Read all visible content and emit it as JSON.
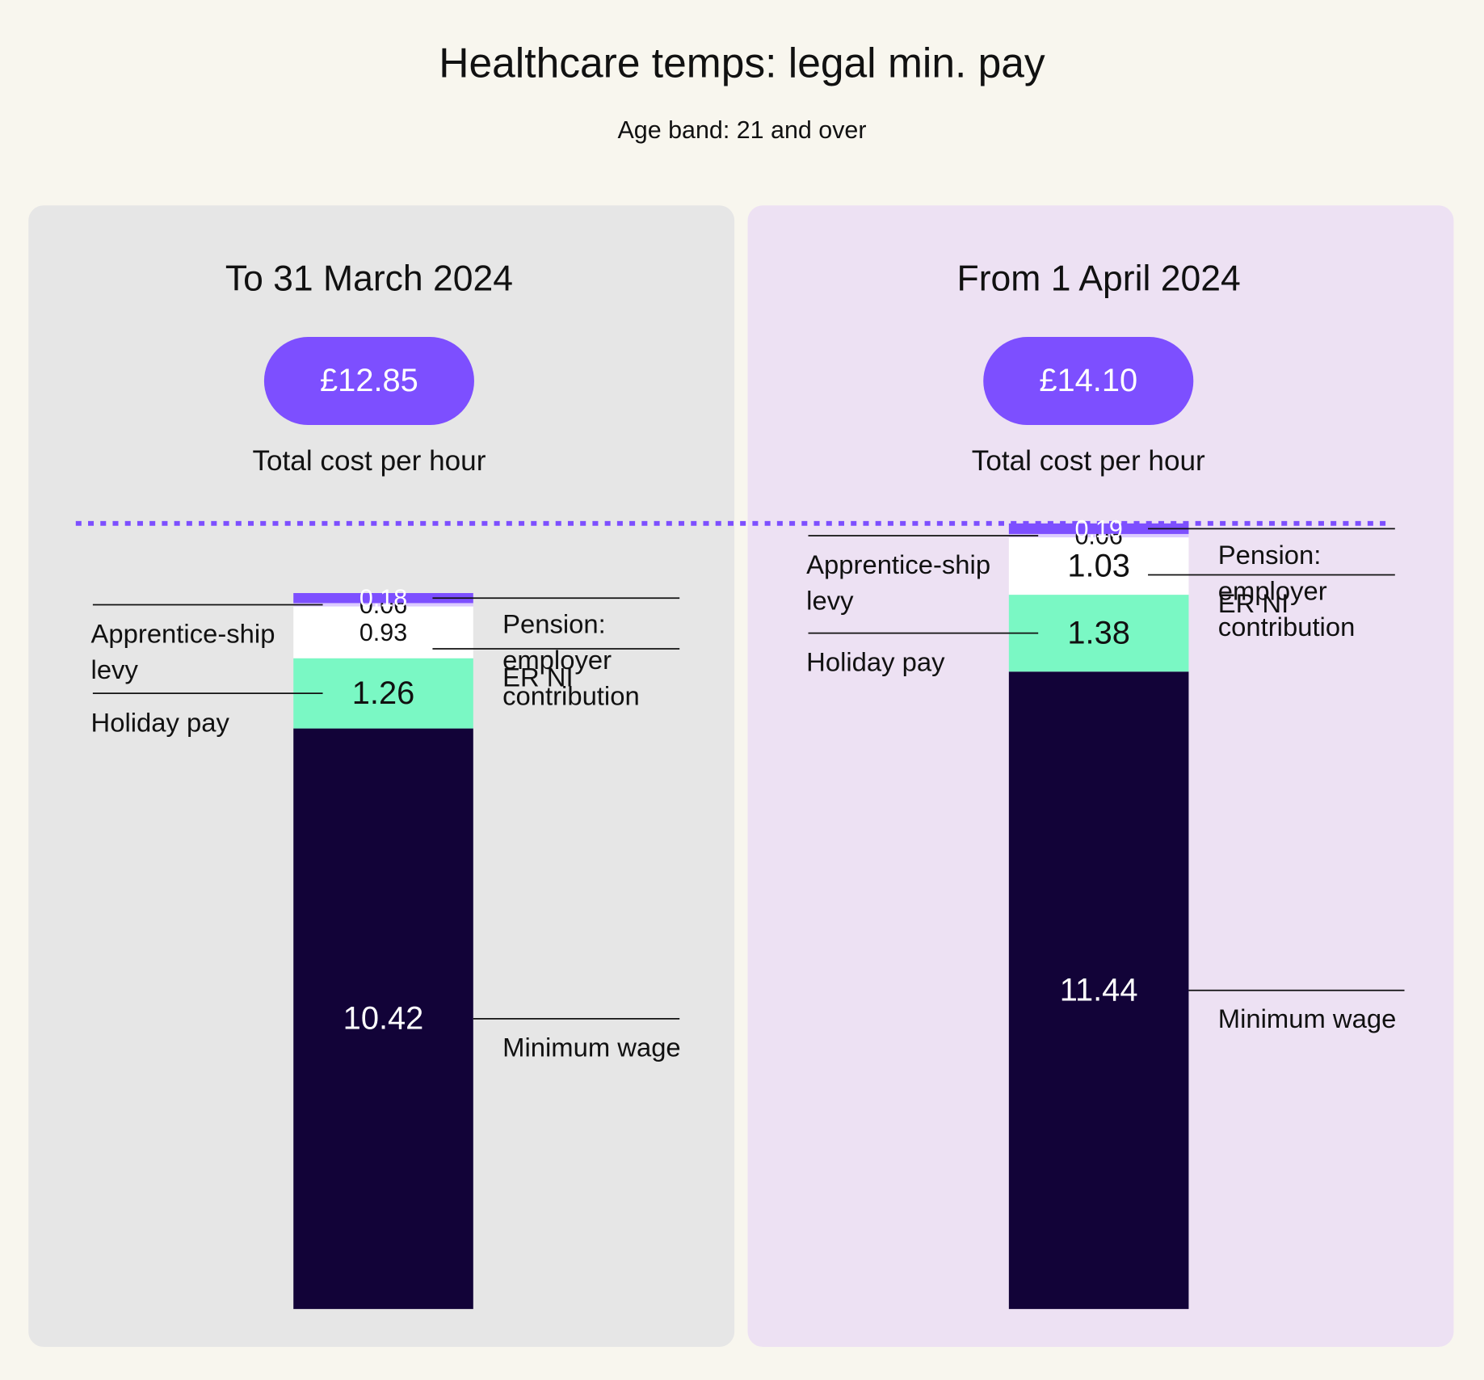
{
  "title": "Healthcare temps: legal min. pay",
  "subtitle": "Age band: 21 and over",
  "chart_data": [
    {
      "type": "bar",
      "title": "To 31 March 2024",
      "total": {
        "value": 12.85,
        "label": "£12.85"
      },
      "total_caption": "Total cost per hour",
      "series": [
        {
          "name": "Minimum wage",
          "color": "#120338",
          "values": [
            10.42
          ]
        },
        {
          "name": "Holiday pay",
          "color": "#7af8c4",
          "values": [
            1.26
          ]
        },
        {
          "name": "ER NI",
          "color": "#ffffff",
          "values": [
            0.93
          ]
        },
        {
          "name": "Apprentice-ship levy",
          "color": "#dccbff",
          "values": [
            0.06
          ]
        },
        {
          "name": "Pension: employer contribution",
          "color": "#7d4fff",
          "values": [
            0.18
          ]
        }
      ]
    },
    {
      "type": "bar",
      "title": "From 1 April 2024",
      "total": {
        "value": 14.1,
        "label": "£14.10"
      },
      "total_caption": "Total cost per hour",
      "series": [
        {
          "name": "Minimum wage",
          "color": "#120338",
          "values": [
            11.44
          ]
        },
        {
          "name": "Holiday pay",
          "color": "#7af8c4",
          "values": [
            1.38
          ]
        },
        {
          "name": "ER NI",
          "color": "#ffffff",
          "values": [
            1.03
          ]
        },
        {
          "name": "Apprentice-ship levy",
          "color": "#dccbff",
          "values": [
            0.06
          ]
        },
        {
          "name": "Pension: employer contribution",
          "color": "#7d4fff",
          "values": [
            0.19
          ]
        }
      ]
    }
  ]
}
